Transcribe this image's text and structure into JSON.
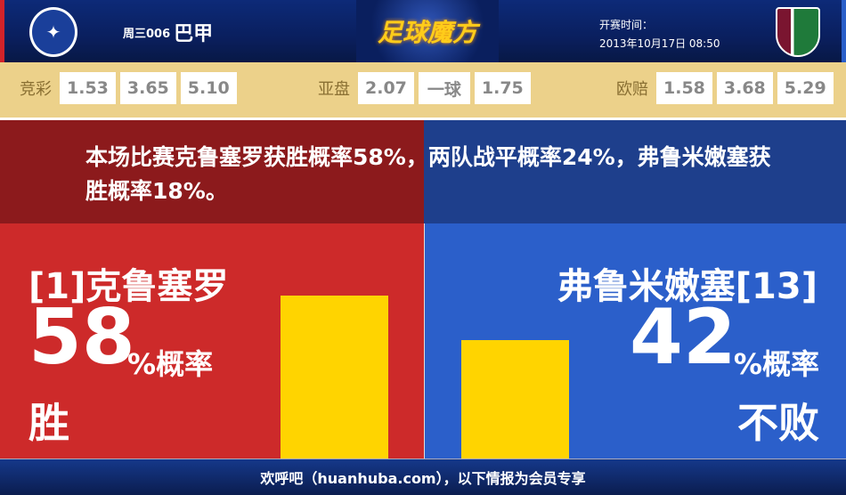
{
  "header": {
    "home_logo": "cruzeiro-crest",
    "match_no": "周三006",
    "league": "巴甲",
    "brand": "足球魔方",
    "kickoff_label": "开赛时间：",
    "kickoff_time": "2013年10月17日 08:50",
    "away_logo": "fluminense-crest"
  },
  "odds": {
    "jingcai": {
      "label": "竞彩",
      "values": [
        "1.53",
        "3.65",
        "5.10"
      ]
    },
    "yapan": {
      "label": "亚盘",
      "values": [
        "2.07",
        "一球",
        "1.75"
      ]
    },
    "ouzhi": {
      "label": "欧赔",
      "values": [
        "1.58",
        "3.68",
        "5.29"
      ]
    }
  },
  "summary": "本场比赛克鲁塞罗获胜概率58%，两队战平概率24%，弗鲁米嫩塞获胜概率18%。",
  "home": {
    "name": "[1]克鲁塞罗",
    "percent": "58",
    "suffix": "%概率",
    "outcome": "胜",
    "value": 58
  },
  "away": {
    "name": "弗鲁米嫩塞[13]",
    "percent": "42",
    "suffix": "%概率",
    "outcome": "不败",
    "value": 42
  },
  "colors": {
    "home": "#cd2a2a",
    "away": "#2b5fca",
    "bar": "#ffd400"
  },
  "footer": "欢呼吧（huanhuba.com），以下情报为会员专享"
}
